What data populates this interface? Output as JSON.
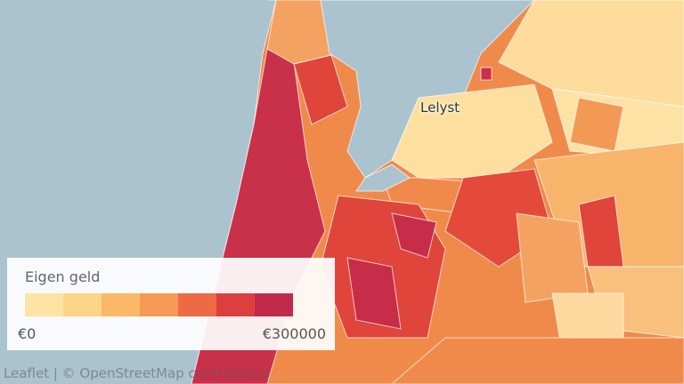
{
  "legend": {
    "title": "Eigen geld",
    "colors": [
      "#fee4a4",
      "#fdd588",
      "#fbb867",
      "#f59a55",
      "#ee6a45",
      "#dc3f3d",
      "#c22a4c"
    ],
    "min_label": "€0",
    "max_label": "€300000"
  },
  "place_label": "Lelyst",
  "attribution": "Leaflet | © OpenStreetMap contributors"
}
